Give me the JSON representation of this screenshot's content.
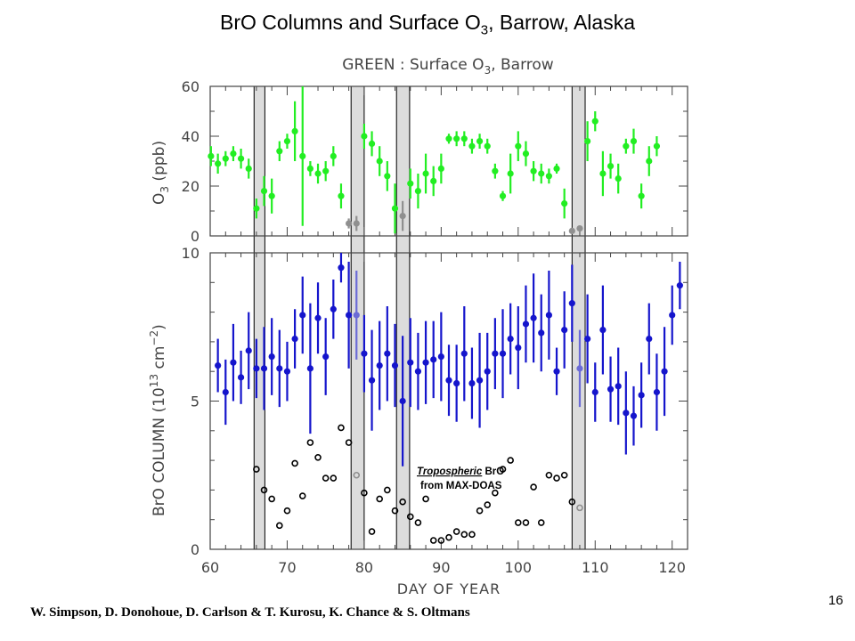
{
  "slide": {
    "title_main": "BrO Columns and Surface O",
    "title_sub": "3",
    "title_tail": ", Barrow, Alaska",
    "page_number": "16",
    "authors": "W. Simpson, D. Donohoue, D. Carlson & T. Kurosu, K. Chance & S. Oltmans"
  },
  "chart_data": [
    {
      "type": "scatter",
      "title": "GREEN : Surface O3, Barrow",
      "xlabel": "DAY OF YEAR",
      "ylabel": "O3 (ppb)",
      "xlim": [
        60,
        122
      ],
      "ylim": [
        0,
        60
      ],
      "yticks": [
        0,
        20,
        40,
        60
      ],
      "series": [
        {
          "color": "#22ee22",
          "x": [
            60.1,
            61,
            62,
            63,
            64,
            65,
            66,
            67,
            68,
            69,
            70,
            71,
            72,
            73,
            74,
            75,
            76,
            77,
            78,
            79,
            80,
            81,
            82,
            83,
            84,
            85,
            86,
            87,
            88,
            89,
            90,
            91,
            92,
            93,
            94,
            95,
            96,
            97,
            98,
            99,
            100,
            101,
            102,
            103,
            104,
            105,
            106,
            107,
            108,
            109,
            110,
            111,
            112,
            113,
            114,
            115,
            116,
            117,
            118,
            119
          ],
          "y": [
            32,
            29,
            31,
            33,
            31,
            27,
            11,
            18,
            16,
            34,
            38,
            42,
            32,
            27,
            25,
            26,
            32,
            16,
            5,
            5,
            40,
            37,
            30,
            24,
            11,
            8,
            21,
            18,
            25,
            22,
            27,
            39,
            39,
            39,
            36,
            38,
            36,
            26,
            16,
            25,
            36,
            33,
            26,
            25,
            24,
            27,
            13,
            2,
            3,
            38,
            46,
            25,
            28,
            23,
            36,
            38,
            16,
            30,
            36,
            null
          ],
          "err": [
            4,
            4,
            3,
            3,
            4,
            4,
            4,
            6,
            7,
            4,
            3,
            12,
            28,
            3,
            4,
            4,
            4,
            5,
            2,
            3,
            5,
            5,
            6,
            6,
            10,
            6,
            6,
            7,
            8,
            6,
            6,
            2,
            3,
            3,
            3,
            3,
            3,
            3,
            2,
            8,
            6,
            5,
            4,
            4,
            3,
            2,
            6,
            1,
            1,
            8,
            4,
            9,
            5,
            6,
            3,
            5,
            5,
            6,
            4,
            0
          ],
          "gray_x": [
            78,
            79,
            85,
            107,
            108
          ]
        }
      ]
    },
    {
      "type": "scatter",
      "xlabel": "DAY OF YEAR",
      "ylabel": "BrO COLUMN (10^13 cm^-2)",
      "xlim": [
        60,
        122
      ],
      "ylim": [
        0,
        10
      ],
      "xticks": [
        60,
        70,
        80,
        90,
        100,
        110,
        120
      ],
      "yticks": [
        0,
        5,
        10
      ],
      "annotation": [
        "Tropospheric",
        "BrO",
        "from MAX-DOAS"
      ],
      "series": [
        {
          "marker": "filled",
          "color": "#1515cc",
          "x": [
            61,
            62,
            63,
            64,
            65,
            66,
            67,
            68,
            69,
            70,
            71,
            72,
            73,
            74,
            75,
            76,
            77,
            78,
            79,
            80,
            81,
            82,
            83,
            84,
            85,
            86,
            87,
            88,
            89,
            90,
            91,
            92,
            93,
            94,
            95,
            96,
            97,
            98,
            99,
            100,
            101,
            102,
            103,
            104,
            105,
            106,
            107,
            108,
            109,
            110,
            111,
            112,
            113,
            114,
            115,
            116,
            117,
            118,
            119,
            120,
            121
          ],
          "y": [
            6.2,
            5.3,
            6.3,
            5.8,
            6.7,
            6.1,
            6.1,
            6.5,
            6.1,
            6.0,
            7.1,
            7.9,
            6.1,
            7.8,
            6.5,
            8.1,
            9.5,
            7.9,
            7.9,
            6.6,
            5.7,
            6.2,
            6.6,
            6.2,
            5.0,
            6.3,
            6.0,
            6.3,
            6.4,
            6.5,
            5.7,
            5.6,
            6.6,
            5.6,
            5.7,
            6.0,
            6.6,
            6.6,
            7.1,
            6.8,
            7.6,
            7.8,
            7.3,
            7.9,
            6.0,
            7.4,
            8.3,
            6.1,
            7.1,
            5.3,
            7.4,
            5.4,
            5.5,
            4.6,
            4.5,
            5.2,
            7.1,
            5.3,
            6.0,
            7.9,
            8.9
          ],
          "err": [
            0.9,
            1.1,
            1.3,
            0.9,
            1.3,
            1.0,
            1.4,
            1.3,
            1.3,
            1.0,
            1.0,
            1.3,
            2.2,
            1.2,
            1.3,
            1.0,
            0.5,
            1.8,
            1.5,
            1.3,
            1.7,
            1.5,
            1.6,
            1.4,
            2.2,
            1.5,
            1.3,
            1.4,
            1.3,
            1.5,
            1.2,
            1.3,
            1.6,
            1.2,
            1.6,
            1.3,
            1.2,
            1.5,
            1.2,
            1.4,
            1.3,
            1.5,
            1.3,
            1.5,
            0.8,
            1.3,
            1.3,
            1.3,
            1.5,
            1.0,
            1.5,
            1.1,
            1.3,
            1.4,
            1.0,
            1.1,
            1.2,
            1.3,
            1.5,
            1.0,
            0.8
          ],
          "gray_x": [
            79,
            108
          ]
        },
        {
          "marker": "open",
          "color": "#000000",
          "x": [
            66,
            67,
            68,
            69,
            70,
            71,
            72,
            73,
            74,
            75,
            76,
            77,
            78,
            79,
            80,
            81,
            82,
            83,
            84,
            85,
            86,
            87,
            88,
            89,
            90,
            91,
            92,
            93,
            94,
            95,
            96,
            97,
            98,
            99,
            100,
            101,
            102,
            103,
            104,
            105,
            106,
            107,
            108
          ],
          "y": [
            2.7,
            2.0,
            1.7,
            0.8,
            1.3,
            2.9,
            1.8,
            3.6,
            3.1,
            2.4,
            2.4,
            4.1,
            3.6,
            2.5,
            1.9,
            0.6,
            1.7,
            2.0,
            1.3,
            1.6,
            1.1,
            0.9,
            1.7,
            0.3,
            0.3,
            0.4,
            0.6,
            0.5,
            0.5,
            1.3,
            1.5,
            1.9,
            2.7,
            3.0,
            0.9,
            0.9,
            2.1,
            0.9,
            2.5,
            2.4,
            2.5,
            1.6,
            1.4
          ],
          "gray_x": [
            79,
            108
          ]
        }
      ]
    }
  ],
  "highlight_bands": [
    {
      "x0": 65.7,
      "x1": 67.1
    },
    {
      "x0": 78.3,
      "x1": 80.0
    },
    {
      "x0": 84.2,
      "x1": 85.9
    },
    {
      "x0": 107.0,
      "x1": 108.7
    }
  ]
}
